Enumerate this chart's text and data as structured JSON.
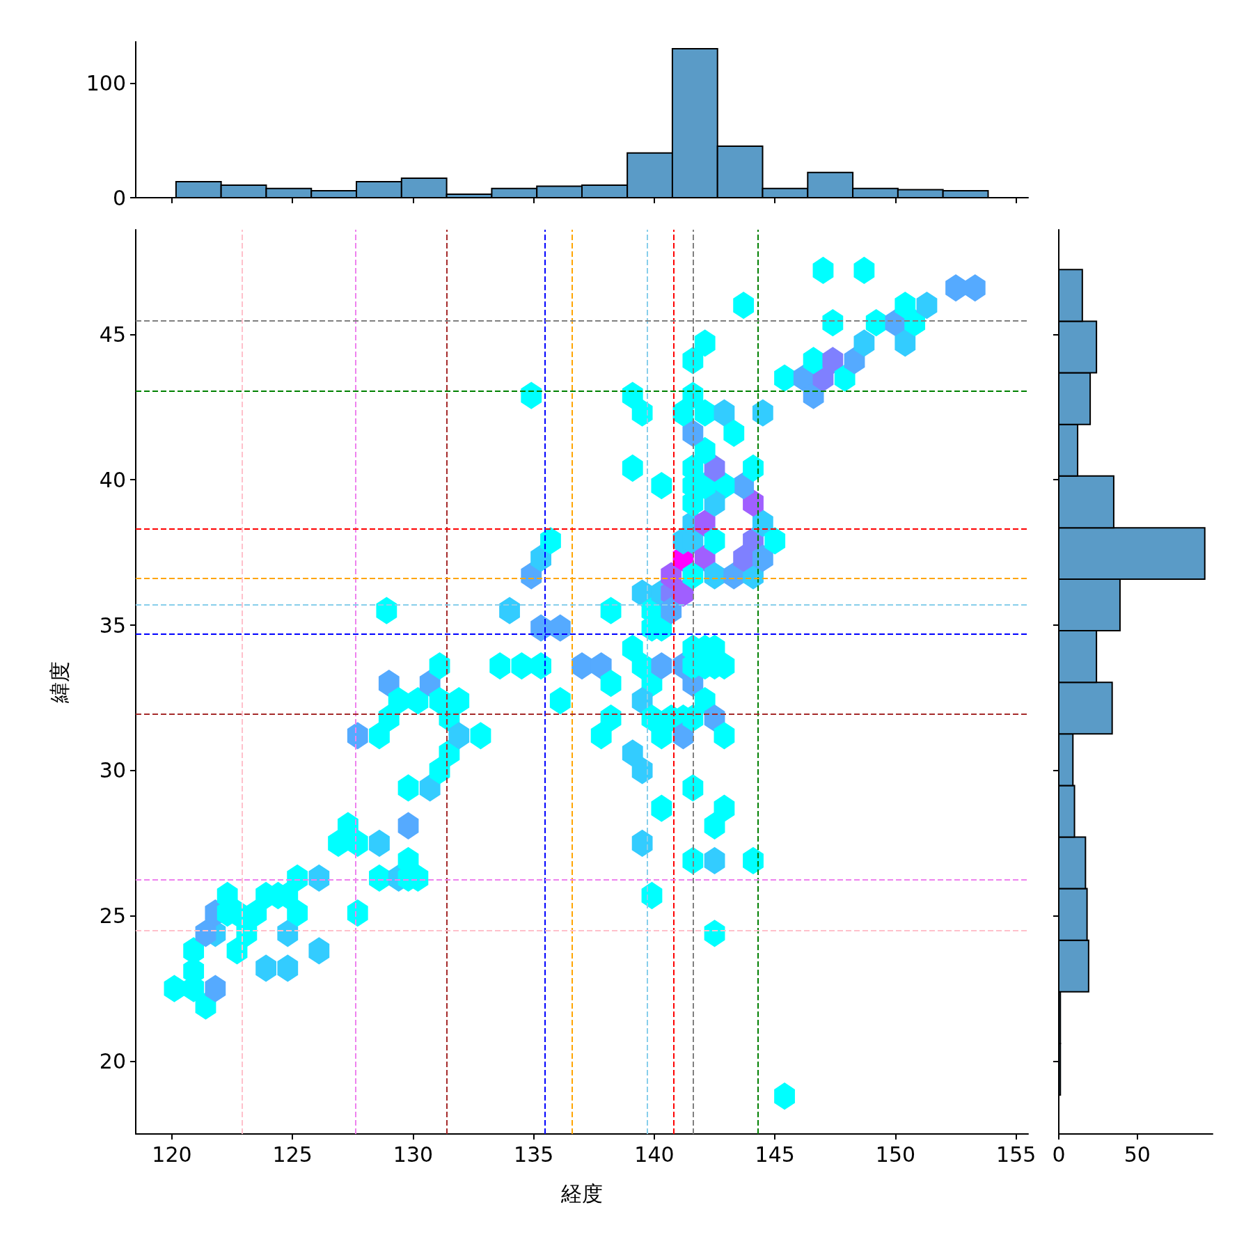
{
  "chart_data": [
    {
      "type": "histogram",
      "bins": [
        120.17,
        122.04,
        123.91,
        125.78,
        127.65,
        129.52,
        131.39,
        133.26,
        135.13,
        137.0,
        138.88,
        140.75,
        142.62,
        144.49,
        146.36,
        148.23,
        150.1,
        151.97,
        153.84
      ],
      "values": [
        14,
        11,
        8,
        6,
        14,
        17,
        3,
        8,
        10,
        11,
        39,
        130,
        45,
        8,
        22,
        8,
        7,
        6
      ],
      "color": "#5a9bc7",
      "xlim": [
        118.5,
        155.5
      ],
      "xticks": [
        120,
        125,
        130,
        135,
        140,
        145,
        150,
        155
      ],
      "ylim": [
        0,
        136
      ],
      "yticks": [
        0,
        100
      ],
      "tick_labels": "y"
    },
    {
      "type": "scatter",
      "xlabel": "経度",
      "ylabel": "緯度",
      "xlim": [
        118.5,
        155.5
      ],
      "ylim": [
        17.5,
        48.6
      ],
      "xticks": [
        120,
        125,
        130,
        135,
        140,
        145,
        150,
        155
      ],
      "yticks": [
        20,
        25,
        30,
        35,
        40,
        45
      ],
      "x": [
        120.1,
        121.4,
        120.9,
        121.8,
        120.9,
        120.9,
        121.8,
        121.4,
        121.8,
        122.3,
        122.7,
        122.3,
        122.7,
        123.1,
        123.5,
        123.9,
        124.4,
        124.8,
        124.8,
        125.2,
        125.2,
        126.1,
        126.1,
        123.9,
        124.8,
        127.7,
        126.9,
        127.3,
        127.7,
        128.6,
        128.6,
        129.4,
        129.8,
        129.8,
        130.2,
        129.8,
        129.8,
        130.7,
        131.1,
        131.5,
        131.5,
        127.7,
        128.6,
        129.0,
        129.0,
        129.4,
        130.2,
        130.7,
        131.1,
        131.1,
        131.9,
        131.9,
        132.8,
        128.9,
        134.9,
        134.0,
        133.6,
        134.5,
        135.3,
        134.9,
        135.3,
        135.7,
        135.3,
        136.1,
        136.1,
        137.0,
        137.8,
        138.2,
        138.2,
        137.8,
        138.2,
        139.1,
        139.1,
        139.5,
        139.1,
        139.5,
        139.5,
        139.9,
        140.3,
        140.3,
        139.1,
        139.5,
        139.9,
        139.5,
        139.9,
        140.3,
        139.9,
        139.5,
        139.9,
        140.3,
        140.3,
        140.7,
        140.7,
        140.3,
        141.2,
        141.6,
        141.2,
        140.7,
        141.2,
        141.6,
        142.1,
        142.5,
        142.9,
        141.6,
        142.1,
        142.5,
        141.6,
        142.5,
        142.9,
        142.1,
        140.7,
        141.2,
        141.2,
        141.2,
        141.6,
        141.6,
        142.1,
        142.1,
        142.5,
        141.6,
        142.5,
        143.3,
        144.1,
        143.7,
        144.1,
        144.5,
        144.5,
        145.0,
        144.1,
        143.7,
        144.1,
        142.9,
        142.5,
        141.6,
        142.1,
        142.5,
        141.6,
        142.1,
        141.6,
        141.2,
        142.1,
        142.9,
        143.3,
        144.5,
        141.6,
        141.6,
        142.1,
        143.7,
        141.6,
        145.4,
        146.2,
        146.6,
        147.0,
        146.6,
        147.4,
        147.9,
        148.3,
        148.7,
        147.4,
        149.2,
        150.0,
        150.4,
        150.4,
        150.8,
        151.3,
        152.5,
        153.3,
        147.0,
        148.7,
        145.4,
        142.5,
        141.6,
        142.5,
        144.1,
        142.5,
        142.9,
        141.6
      ],
      "values": [
        22.5,
        21.9,
        22.5,
        22.5,
        23.1,
        23.8,
        24.4,
        24.4,
        25.1,
        25.1,
        23.8,
        25.7,
        25.1,
        24.4,
        25.1,
        25.7,
        25.7,
        25.7,
        24.4,
        26.3,
        25.1,
        26.3,
        23.8,
        23.2,
        23.2,
        25.1,
        27.5,
        28.1,
        27.5,
        27.5,
        26.3,
        26.3,
        26.9,
        26.3,
        26.3,
        28.1,
        29.4,
        29.4,
        30.0,
        30.6,
        31.8,
        31.2,
        31.2,
        31.8,
        33.0,
        32.4,
        32.4,
        33.0,
        32.4,
        33.6,
        32.4,
        31.2,
        31.2,
        35.5,
        42.9,
        35.5,
        33.6,
        33.6,
        33.6,
        36.7,
        37.3,
        37.9,
        34.9,
        34.9,
        32.4,
        33.6,
        33.6,
        33.0,
        35.5,
        31.2,
        31.8,
        40.4,
        42.9,
        42.3,
        30.6,
        30.0,
        27.5,
        25.7,
        28.7,
        39.8,
        34.2,
        33.6,
        33.0,
        32.4,
        31.8,
        31.2,
        34.9,
        36.1,
        35.5,
        34.9,
        36.1,
        36.1,
        35.5,
        33.6,
        33.6,
        33.0,
        31.8,
        31.8,
        31.2,
        31.8,
        32.4,
        31.8,
        31.2,
        34.2,
        34.2,
        34.2,
        33.6,
        33.6,
        33.6,
        33.6,
        36.7,
        37.3,
        36.1,
        37.9,
        37.9,
        38.5,
        38.5,
        37.3,
        37.9,
        36.7,
        36.7,
        36.7,
        36.7,
        37.3,
        37.9,
        37.3,
        38.5,
        37.9,
        39.2,
        39.8,
        40.4,
        39.8,
        39.2,
        39.2,
        39.8,
        40.4,
        40.4,
        41.0,
        41.6,
        42.3,
        42.3,
        42.3,
        41.6,
        42.3,
        42.9,
        44.1,
        44.7,
        46.0,
        39.8,
        43.5,
        43.5,
        42.9,
        43.5,
        44.1,
        44.1,
        43.5,
        44.1,
        44.7,
        45.4,
        45.4,
        45.4,
        44.7,
        46.0,
        45.4,
        46.0,
        46.6,
        46.6,
        47.2,
        47.2,
        18.8,
        24.4,
        26.9,
        26.9,
        26.9,
        28.1,
        28.7,
        29.4
      ],
      "colors": [
        "#00ffff",
        "#00ffff",
        "#00ffff",
        "#55aaff",
        "#00ffff",
        "#00ffff",
        "#33ccff",
        "#55aaff",
        "#55aaff",
        "#00ffff",
        "#00ffff",
        "#00ffff",
        "#00ffff",
        "#00ffff",
        "#00ffff",
        "#00ffff",
        "#00ffff",
        "#00ffff",
        "#33ccff",
        "#00ffff",
        "#00ffff",
        "#33ccff",
        "#33ccff",
        "#33ccff",
        "#33ccff",
        "#00ffff",
        "#00ffff",
        "#00ffff",
        "#00ffff",
        "#33ccff",
        "#00ffff",
        "#33ccff",
        "#00ffff",
        "#00ffff",
        "#00ffff",
        "#55aaff",
        "#00ffff",
        "#33ccff",
        "#00ffff",
        "#00ffff",
        "#00ffff",
        "#55aaff",
        "#00ffff",
        "#00ffff",
        "#55aaff",
        "#00ffff",
        "#00ffff",
        "#55aaff",
        "#00ffff",
        "#00ffff",
        "#00ffff",
        "#33ccff",
        "#00ffff",
        "#00ffff",
        "#00ffff",
        "#33ccff",
        "#00ffff",
        "#00ffff",
        "#00ffff",
        "#55aaff",
        "#33ccff",
        "#00ffff",
        "#55aaff",
        "#55aaff",
        "#00ffff",
        "#55aaff",
        "#55aaff",
        "#00ffff",
        "#00ffff",
        "#00ffff",
        "#00ffff",
        "#00ffff",
        "#00ffff",
        "#00ffff",
        "#33ccff",
        "#33ccff",
        "#33ccff",
        "#00ffff",
        "#00ffff",
        "#00ffff",
        "#00ffff",
        "#00ffff",
        "#00ffff",
        "#33ccff",
        "#00ffff",
        "#00ffff",
        "#00ffff",
        "#33ccff",
        "#00ffff",
        "#00ffff",
        "#33ccff",
        "#7f80ff",
        "#55aaff",
        "#55aaff",
        "#55aaff",
        "#55aaff",
        "#00ffff",
        "#00ffff",
        "#55aaff",
        "#00ffff",
        "#00ffff",
        "#55aaff",
        "#00ffff",
        "#00ffff",
        "#00ffff",
        "#00ffff",
        "#00ffff",
        "#00ffff",
        "#00ffff",
        "#00ffff",
        "#a05fff",
        "#ff00ff",
        "#a05fff",
        "#33ccff",
        "#33ccff",
        "#33ccff",
        "#a05fff",
        "#a05fff",
        "#00ffff",
        "#00ffff",
        "#33ccff",
        "#55aaff",
        "#33ccff",
        "#7f80ff",
        "#7f80ff",
        "#55aaff",
        "#33ccff",
        "#00ffff",
        "#a05fff",
        "#55aaff",
        "#00ffff",
        "#00ffff",
        "#33ccff",
        "#00ffff",
        "#00ffff",
        "#7f80ff",
        "#00ffff",
        "#00ffff",
        "#55aaff",
        "#00ffff",
        "#00ffff",
        "#33ccff",
        "#00ffff",
        "#33ccff",
        "#00ffff",
        "#00ffff",
        "#00ffff",
        "#00ffff",
        "#00ffff",
        "#00ffff",
        "#55aaff",
        "#55aaff",
        "#7f80ff",
        "#00ffff",
        "#7f80ff",
        "#00ffff",
        "#55aaff",
        "#33ccff",
        "#00ffff",
        "#00ffff",
        "#55aaff",
        "#33ccff",
        "#00ffff",
        "#00ffff",
        "#33ccff",
        "#55aaff",
        "#55aaff",
        "#00ffff",
        "#00ffff",
        "#00ffff",
        "#00ffff",
        "#00ffff",
        "#33ccff",
        "#00ffff",
        "#00ffff",
        "#00ffff",
        "#00ffff"
      ],
      "ref_lines": [
        {
          "axis": "x",
          "value": 122.9,
          "color": "#ffc0cb",
          "line_style": "dashed"
        },
        {
          "axis": "x",
          "value": 127.6,
          "color": "#ee82ee",
          "line_style": "dashed"
        },
        {
          "axis": "x",
          "value": 131.4,
          "color": "#a52a2a",
          "line_style": "dashed"
        },
        {
          "axis": "x",
          "value": 135.45,
          "color": "#0000ff",
          "line_style": "dashed"
        },
        {
          "axis": "x",
          "value": 136.6,
          "color": "#ffa500",
          "line_style": "dashed"
        },
        {
          "axis": "x",
          "value": 139.7,
          "color": "#87ceeb",
          "line_style": "dashed"
        },
        {
          "axis": "x",
          "value": 140.8,
          "color": "#ff0000",
          "line_style": "dashed"
        },
        {
          "axis": "x",
          "value": 141.6,
          "color": "#808080",
          "line_style": "dashed"
        },
        {
          "axis": "x",
          "value": 144.3,
          "color": "#008000",
          "line_style": "dashed"
        },
        {
          "axis": "y",
          "value": 45.47,
          "color": "#808080",
          "line_style": "dashed"
        },
        {
          "axis": "y",
          "value": 43.05,
          "color": "#008000",
          "line_style": "dashed"
        },
        {
          "axis": "y",
          "value": 38.3,
          "color": "#ff0000",
          "line_style": "dashed"
        },
        {
          "axis": "y",
          "value": 36.6,
          "color": "#ffa500",
          "line_style": "dashed"
        },
        {
          "axis": "y",
          "value": 35.7,
          "color": "#87ceeb",
          "line_style": "dashed"
        },
        {
          "axis": "y",
          "value": 34.7,
          "color": "#0000ff",
          "line_style": "dashed"
        },
        {
          "axis": "y",
          "value": 31.95,
          "color": "#a52a2a",
          "line_style": "dashed"
        },
        {
          "axis": "y",
          "value": 26.25,
          "color": "#ee82ee",
          "line_style": "dashed"
        },
        {
          "axis": "y",
          "value": 24.5,
          "color": "#ffc0cb",
          "line_style": "dashed"
        }
      ]
    },
    {
      "type": "histogram",
      "orientation": "horizontal",
      "bins": [
        18.84,
        20.61,
        22.39,
        24.16,
        25.94,
        27.71,
        29.48,
        31.26,
        33.03,
        34.81,
        36.58,
        38.35,
        40.13,
        41.9,
        43.68,
        45.45,
        47.23
      ],
      "values": [
        1,
        1,
        19,
        18,
        17,
        10,
        9,
        34,
        24,
        39,
        93,
        35,
        12,
        20,
        24,
        15
      ],
      "color": "#5a9bc7",
      "xlim": [
        0,
        98
      ],
      "xticks": [
        0,
        50
      ],
      "ylim": [
        17.5,
        48.6
      ],
      "yticks": [
        20,
        25,
        30,
        35,
        40,
        45
      ],
      "tick_labels": "x"
    }
  ]
}
